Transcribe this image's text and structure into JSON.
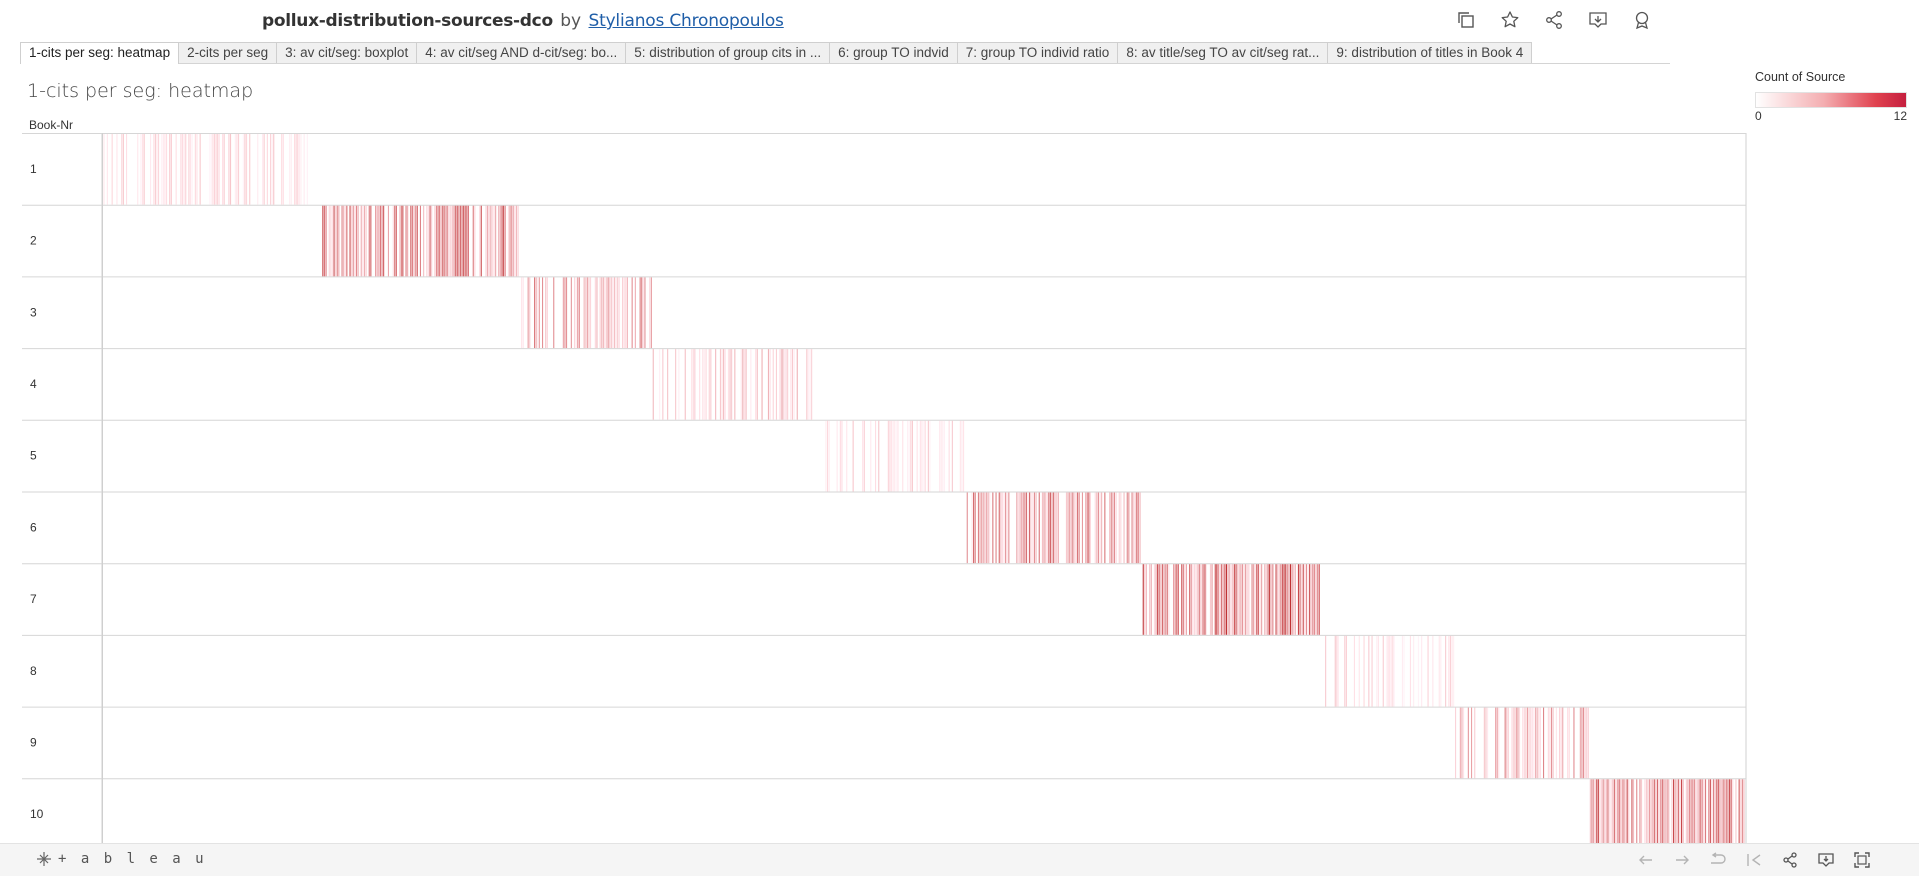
{
  "header": {
    "workbook_title": "pollux-distribution-sources-dco",
    "by_label": "by",
    "author": "Stylianos Chronopoulos",
    "icons": [
      "copy-icon",
      "star-icon",
      "share-icon",
      "download-icon",
      "badge-icon"
    ]
  },
  "tabs": [
    {
      "label": "1-cits per seg: heatmap",
      "active": true
    },
    {
      "label": "2-cits per seg",
      "active": false
    },
    {
      "label": "3: av cit/seg: boxplot",
      "active": false
    },
    {
      "label": "4: av cit/seg AND d-cit/seg: bo...",
      "active": false
    },
    {
      "label": "5: distribution of group cits in ...",
      "active": false
    },
    {
      "label": "6: group TO indvid",
      "active": false
    },
    {
      "label": "7: group TO individ ratio",
      "active": false
    },
    {
      "label": "8: av title/seg TO av cit/seg rat...",
      "active": false
    },
    {
      "label": "9: distribution of titles in Book 4",
      "active": false
    }
  ],
  "sheet": {
    "title": "1-cits per seg: heatmap",
    "row_header": "Book-Nr"
  },
  "legend": {
    "title": "Count of Source",
    "min_label": "0",
    "max_label": "12",
    "color_low": "#ffffff",
    "color_high": "#c51f3f"
  },
  "chart_data": {
    "type": "heatmap",
    "measure": "Count of Source",
    "color_range": [
      0,
      12
    ],
    "rows": [
      {
        "book": "1",
        "span": [
          0.0,
          0.129
        ],
        "density": 0.55,
        "intensity": 0.35
      },
      {
        "book": "2",
        "span": [
          0.134,
          0.253
        ],
        "density": 0.8,
        "intensity": 0.75
      },
      {
        "book": "3",
        "span": [
          0.255,
          0.334
        ],
        "density": 0.65,
        "intensity": 0.6
      },
      {
        "book": "4",
        "span": [
          0.335,
          0.432
        ],
        "density": 0.55,
        "intensity": 0.45
      },
      {
        "book": "5",
        "span": [
          0.44,
          0.525
        ],
        "density": 0.45,
        "intensity": 0.35
      },
      {
        "book": "6",
        "span": [
          0.526,
          0.632
        ],
        "density": 0.75,
        "intensity": 0.7
      },
      {
        "book": "7",
        "span": [
          0.633,
          0.741
        ],
        "density": 0.9,
        "intensity": 0.8
      },
      {
        "book": "8",
        "span": [
          0.744,
          0.822
        ],
        "density": 0.45,
        "intensity": 0.35
      },
      {
        "book": "9",
        "span": [
          0.823,
          0.904
        ],
        "density": 0.7,
        "intensity": 0.6
      },
      {
        "book": "10",
        "span": [
          0.905,
          1.0
        ],
        "density": 0.9,
        "intensity": 0.75
      }
    ]
  },
  "footer": {
    "logo_text": "+ a b l e a u",
    "icons": [
      "undo-icon",
      "redo-icon",
      "revert-icon",
      "reset-icon",
      "share-icon",
      "download-icon",
      "fullscreen-icon"
    ]
  }
}
